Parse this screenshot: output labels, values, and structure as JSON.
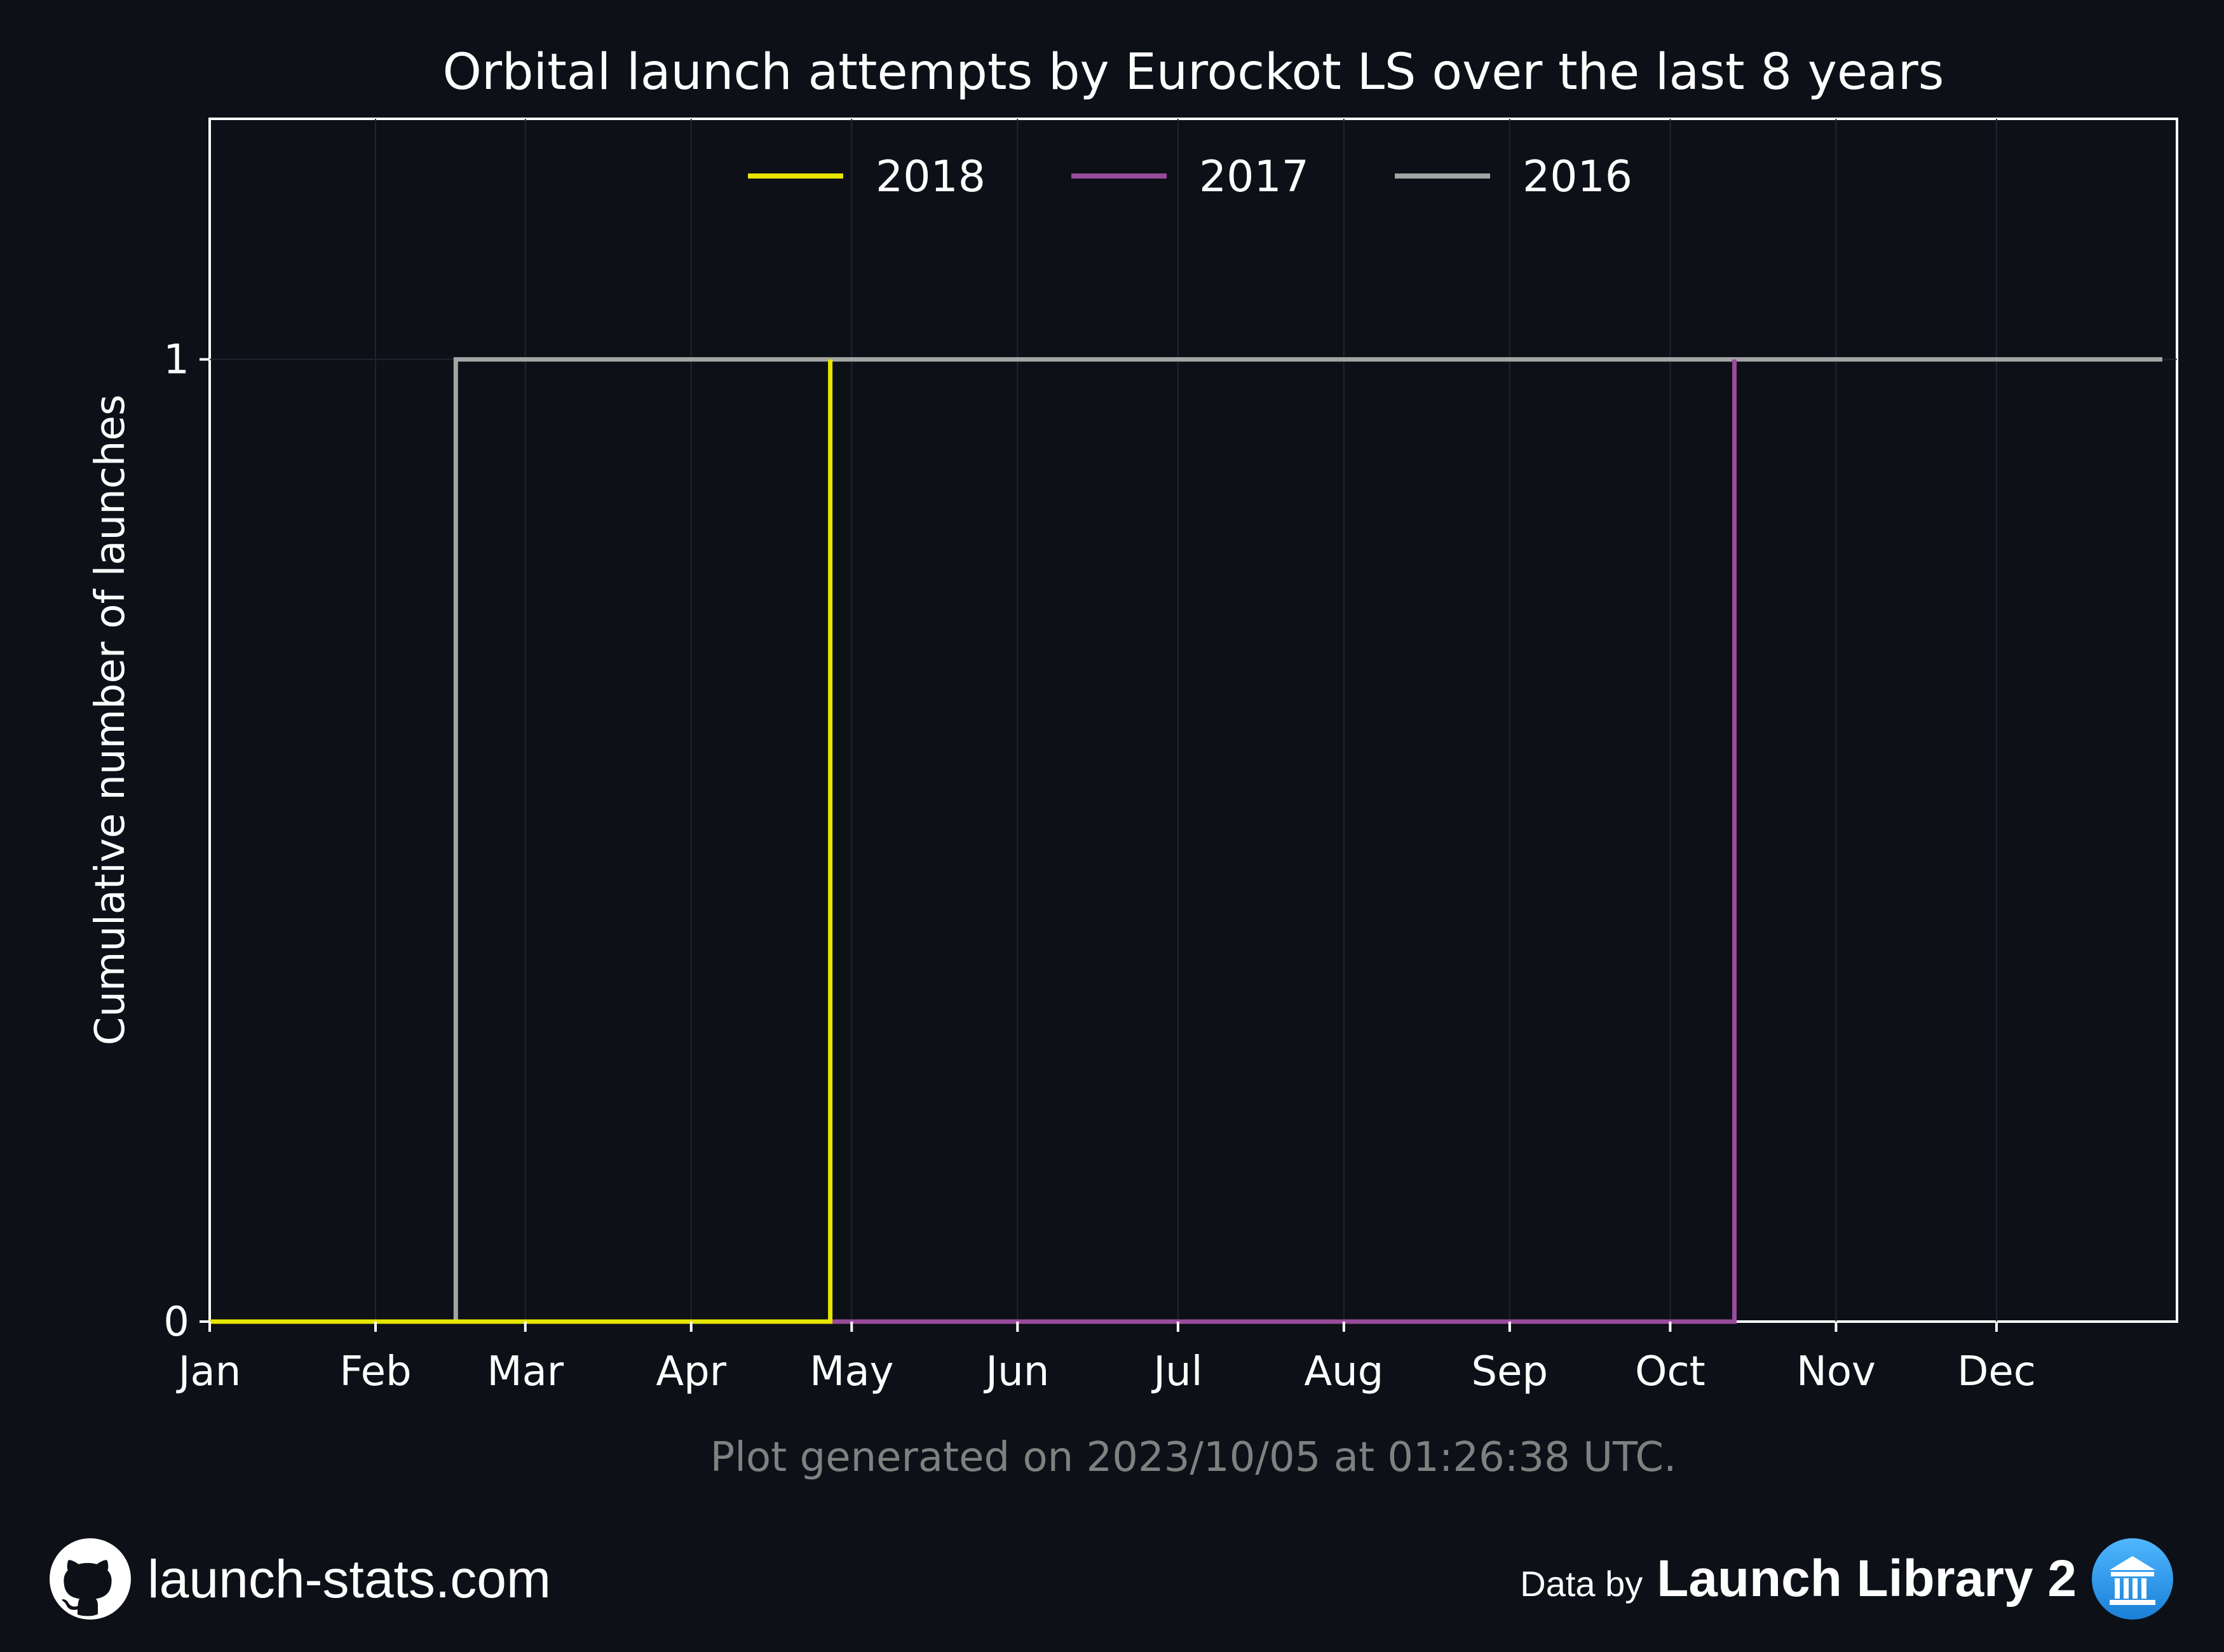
{
  "chart_data": {
    "type": "line",
    "step": true,
    "title": "Orbital launch attempts by Eurockot LS over the last 8 years",
    "ylabel": "Cumulative number of launches",
    "xlabel": "",
    "x_ticks": [
      "Jan",
      "Feb",
      "Mar",
      "Apr",
      "May",
      "Jun",
      "Jul",
      "Aug",
      "Sep",
      "Oct",
      "Nov",
      "Dec"
    ],
    "x_unit": "day of year",
    "xlim": [
      1,
      366
    ],
    "y_ticks": [
      "0",
      "1"
    ],
    "ylim": [
      0,
      1.25
    ],
    "grid": true,
    "legend_position": "top-center",
    "series": [
      {
        "name": "2018",
        "color": "#e6e600",
        "points": [
          [
            1,
            0
          ],
          [
            117,
            0
          ],
          [
            117,
            1
          ]
        ]
      },
      {
        "name": "2017",
        "color": "#9a4c9c",
        "points": [
          [
            1,
            0
          ],
          [
            286,
            0
          ],
          [
            286,
            1
          ]
        ]
      },
      {
        "name": "2016",
        "color": "#a4a4a4",
        "points": [
          [
            1,
            0
          ],
          [
            47,
            0
          ],
          [
            47,
            1
          ],
          [
            366,
            1
          ]
        ]
      }
    ]
  },
  "footnote": "Plot generated on 2023/10/05 at 01:26:38 UTC.",
  "footer": {
    "site": "launch-stats.com",
    "data_by": "Data by",
    "source": "Launch Library 2"
  },
  "colors": {
    "background": "#0d1017",
    "footnote": "#808080"
  },
  "icons": {
    "left": "github-icon",
    "right": "launch-library-icon"
  }
}
